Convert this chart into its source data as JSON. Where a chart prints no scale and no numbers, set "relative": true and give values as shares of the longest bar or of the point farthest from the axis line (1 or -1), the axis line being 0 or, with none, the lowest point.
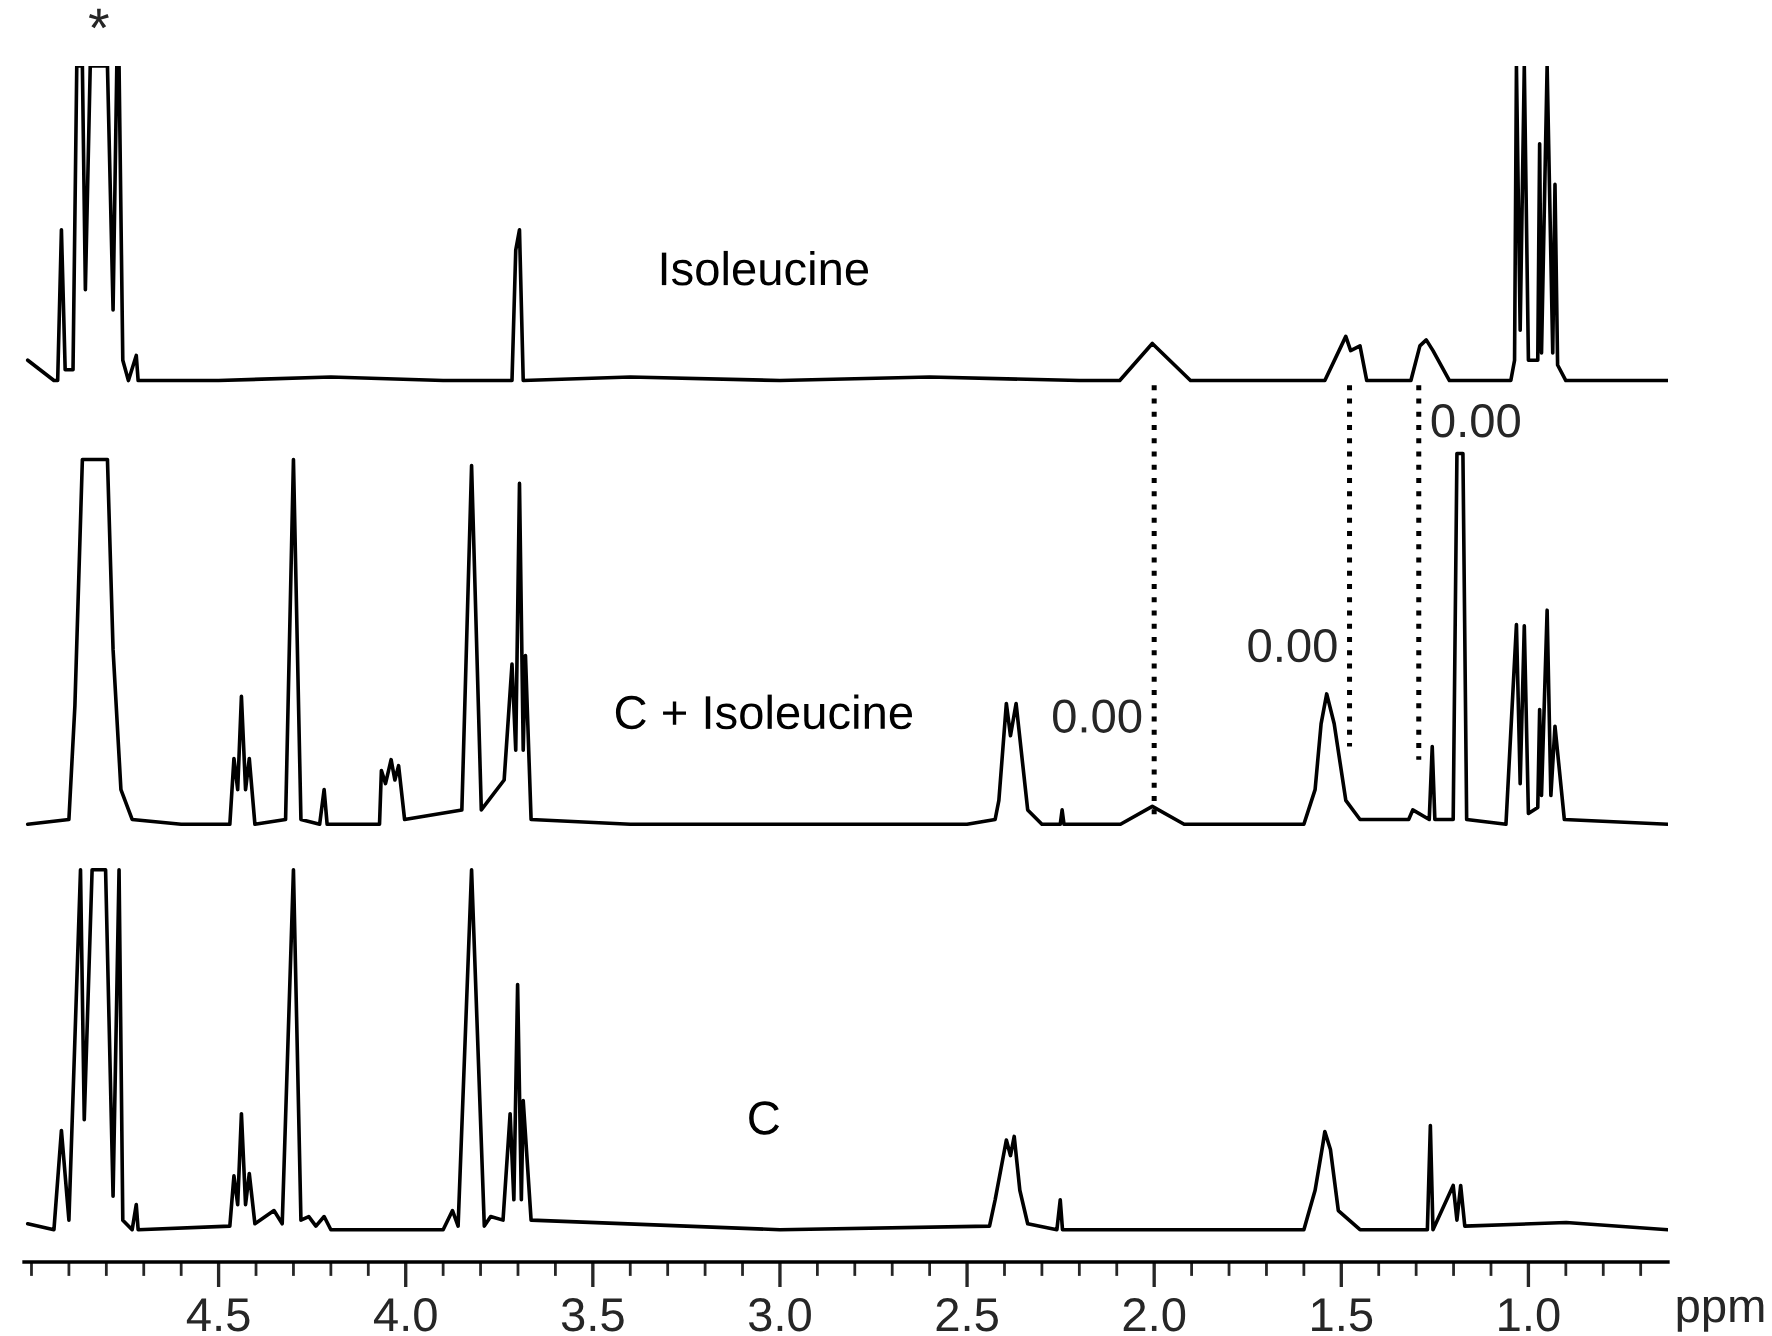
{
  "chart_data": {
    "type": "line",
    "relative": true,
    "tick_labels": "x",
    "xlabel": "ppm",
    "xlim": [
      5.02,
      0.627
    ],
    "xticks": [
      {
        "value": 5.0,
        "label": null
      },
      {
        "value": 4.9,
        "label": null
      },
      {
        "value": 4.8,
        "label": null
      },
      {
        "value": 4.7,
        "label": null
      },
      {
        "value": 4.6,
        "label": null
      },
      {
        "value": 4.5,
        "label": "4.5"
      },
      {
        "value": 4.4,
        "label": null
      },
      {
        "value": 4.3,
        "label": null
      },
      {
        "value": 4.2,
        "label": null
      },
      {
        "value": 4.1,
        "label": null
      },
      {
        "value": 4.0,
        "label": "4.0"
      },
      {
        "value": 3.9,
        "label": null
      },
      {
        "value": 3.8,
        "label": null
      },
      {
        "value": 3.7,
        "label": null
      },
      {
        "value": 3.6,
        "label": null
      },
      {
        "value": 3.5,
        "label": "3.5"
      },
      {
        "value": 3.4,
        "label": null
      },
      {
        "value": 3.3,
        "label": null
      },
      {
        "value": 3.2,
        "label": null
      },
      {
        "value": 3.1,
        "label": null
      },
      {
        "value": 3.0,
        "label": "3.0"
      },
      {
        "value": 2.9,
        "label": null
      },
      {
        "value": 2.8,
        "label": null
      },
      {
        "value": 2.7,
        "label": null
      },
      {
        "value": 2.6,
        "label": null
      },
      {
        "value": 2.5,
        "label": "2.5"
      },
      {
        "value": 2.4,
        "label": null
      },
      {
        "value": 2.3,
        "label": null
      },
      {
        "value": 2.2,
        "label": null
      },
      {
        "value": 2.1,
        "label": null
      },
      {
        "value": 2.0,
        "label": "2.0"
      },
      {
        "value": 1.9,
        "label": null
      },
      {
        "value": 1.8,
        "label": null
      },
      {
        "value": 1.7,
        "label": null
      },
      {
        "value": 1.6,
        "label": null
      },
      {
        "value": 1.5,
        "label": "1.5"
      },
      {
        "value": 1.4,
        "label": null
      },
      {
        "value": 1.3,
        "label": null
      },
      {
        "value": 1.2,
        "label": null
      },
      {
        "value": 1.1,
        "label": null
      },
      {
        "value": 1.0,
        "label": "1.0"
      },
      {
        "value": 0.9,
        "label": null
      },
      {
        "value": 0.8,
        "label": null
      },
      {
        "value": 0.7,
        "label": null
      }
    ],
    "series": [
      {
        "name": "Isoleucine",
        "color": "#000000",
        "line_style": "solid",
        "x": [
          5.01,
          4.94,
          4.93,
          4.92,
          4.91,
          4.889,
          4.879,
          4.864,
          4.856,
          4.843,
          4.797,
          4.782,
          4.772,
          4.766,
          4.756,
          4.741,
          4.72,
          4.715,
          4.5,
          4.2,
          3.9,
          3.716,
          3.706,
          3.696,
          3.686,
          3.4,
          3.0,
          2.6,
          2.2,
          2.092,
          2.005,
          1.903,
          1.7,
          1.544,
          1.5,
          1.488,
          1.475,
          1.45,
          1.432,
          1.314,
          1.29,
          1.273,
          1.255,
          1.211,
          1.047,
          1.037,
          1.032,
          1.022,
          1.011,
          1.0,
          0.975,
          0.97,
          0.965,
          0.95,
          0.935,
          0.929,
          0.922,
          0.9,
          0.627
        ],
        "values": [
          0.754,
          0.737,
          0.737,
          0.863,
          0.746,
          0.746,
          1.0,
          1.0,
          0.813,
          1.0,
          1.0,
          0.796,
          1.0,
          1.0,
          0.754,
          0.737,
          0.758,
          0.737,
          0.737,
          0.74,
          0.737,
          0.737,
          0.846,
          0.863,
          0.737,
          0.74,
          0.737,
          0.74,
          0.737,
          0.737,
          0.768,
          0.737,
          0.737,
          0.737,
          0.766,
          0.774,
          0.762,
          0.766,
          0.737,
          0.737,
          0.766,
          0.771,
          0.762,
          0.737,
          0.737,
          0.754,
          1.0,
          0.779,
          1.0,
          0.754,
          0.754,
          0.935,
          0.76,
          1.0,
          0.76,
          0.901,
          0.75,
          0.737,
          0.737
        ]
      },
      {
        "name": "C + Isoleucine",
        "color": "#000000",
        "line_style": "solid",
        "x": [
          5.01,
          4.9,
          4.884,
          4.864,
          4.797,
          4.782,
          4.761,
          4.731,
          4.6,
          4.47,
          4.459,
          4.449,
          4.439,
          4.428,
          4.418,
          4.403,
          4.321,
          4.3,
          4.28,
          4.23,
          4.218,
          4.21,
          4.07,
          4.065,
          4.054,
          4.039,
          4.029,
          4.019,
          4.003,
          3.85,
          3.824,
          3.798,
          3.737,
          3.716,
          3.706,
          3.696,
          3.686,
          3.68,
          3.665,
          3.4,
          2.5,
          2.425,
          2.415,
          2.395,
          2.384,
          2.369,
          2.338,
          2.3,
          2.251,
          2.246,
          2.241,
          2.09,
          2.005,
          1.92,
          1.6,
          1.57,
          1.554,
          1.539,
          1.519,
          1.488,
          1.45,
          1.32,
          1.309,
          1.265,
          1.257,
          1.25,
          1.201,
          1.191,
          1.175,
          1.165,
          1.06,
          1.032,
          1.022,
          1.011,
          1.0,
          0.975,
          0.97,
          0.965,
          0.95,
          0.94,
          0.929,
          0.904,
          0.627
        ],
        "values": [
          0.366,
          0.37,
          0.465,
          0.671,
          0.671,
          0.512,
          0.395,
          0.37,
          0.366,
          0.366,
          0.421,
          0.395,
          0.473,
          0.395,
          0.421,
          0.366,
          0.37,
          0.671,
          0.37,
          0.366,
          0.395,
          0.366,
          0.366,
          0.411,
          0.4,
          0.42,
          0.403,
          0.415,
          0.37,
          0.378,
          0.666,
          0.378,
          0.403,
          0.5,
          0.428,
          0.651,
          0.428,
          0.507,
          0.37,
          0.366,
          0.366,
          0.37,
          0.386,
          0.467,
          0.44,
          0.467,
          0.378,
          0.366,
          0.366,
          0.378,
          0.366,
          0.366,
          0.381,
          0.366,
          0.366,
          0.395,
          0.45,
          0.475,
          0.45,
          0.386,
          0.37,
          0.37,
          0.378,
          0.37,
          0.431,
          0.37,
          0.37,
          0.676,
          0.676,
          0.37,
          0.366,
          0.533,
          0.4,
          0.532,
          0.375,
          0.38,
          0.462,
          0.39,
          0.545,
          0.39,
          0.448,
          0.37,
          0.366
        ]
      },
      {
        "name": "C",
        "color": "#000000",
        "line_style": "solid",
        "x": [
          5.01,
          4.94,
          4.92,
          4.9,
          4.869,
          4.859,
          4.838,
          4.802,
          4.782,
          4.766,
          4.756,
          4.731,
          4.72,
          4.715,
          4.47,
          4.459,
          4.449,
          4.439,
          4.428,
          4.418,
          4.403,
          4.352,
          4.33,
          4.3,
          4.28,
          4.259,
          4.24,
          4.218,
          4.2,
          3.9,
          3.875,
          3.86,
          3.824,
          3.79,
          3.773,
          3.74,
          3.721,
          3.711,
          3.701,
          3.691,
          3.686,
          3.665,
          3.0,
          2.44,
          2.425,
          2.395,
          2.384,
          2.374,
          2.359,
          2.338,
          2.26,
          2.251,
          2.245,
          1.6,
          1.57,
          1.549,
          1.544,
          1.529,
          1.508,
          1.45,
          1.27,
          1.262,
          1.255,
          1.201,
          1.191,
          1.181,
          1.17,
          0.899,
          0.627
        ],
        "values": [
          0.032,
          0.027,
          0.11,
          0.035,
          0.328,
          0.119,
          0.328,
          0.328,
          0.055,
          0.328,
          0.035,
          0.027,
          0.048,
          0.027,
          0.03,
          0.072,
          0.048,
          0.124,
          0.048,
          0.074,
          0.032,
          0.043,
          0.032,
          0.328,
          0.035,
          0.038,
          0.03,
          0.038,
          0.027,
          0.027,
          0.043,
          0.03,
          0.328,
          0.03,
          0.038,
          0.035,
          0.124,
          0.052,
          0.232,
          0.052,
          0.135,
          0.035,
          0.027,
          0.03,
          0.052,
          0.102,
          0.089,
          0.105,
          0.06,
          0.032,
          0.027,
          0.052,
          0.027,
          0.027,
          0.06,
          0.099,
          0.109,
          0.094,
          0.043,
          0.027,
          0.027,
          0.114,
          0.027,
          0.064,
          0.035,
          0.064,
          0.03,
          0.033,
          0.027
        ]
      },
      {
        "color": "#000000",
        "line_style": "dotted",
        "x": [
          2.0,
          2.0
        ],
        "values": [
          0.733,
          0.37
        ]
      },
      {
        "color": "#000000",
        "line_style": "dotted",
        "x": [
          1.478,
          1.478
        ],
        "values": [
          0.733,
          0.431
        ]
      },
      {
        "color": "#000000",
        "line_style": "dotted",
        "x": [
          1.293,
          1.293
        ],
        "values": [
          0.733,
          0.42
        ]
      }
    ],
    "annotations": [
      {
        "text": "*",
        "x": 4.82,
        "y": 1.0
      },
      {
        "text": "0.00",
        "x": 2.0,
        "y": 0.453
      },
      {
        "text": "0.00",
        "x": 1.478,
        "y": 0.512
      },
      {
        "text": "0.00",
        "x": 1.293,
        "y": 0.7
      }
    ]
  }
}
